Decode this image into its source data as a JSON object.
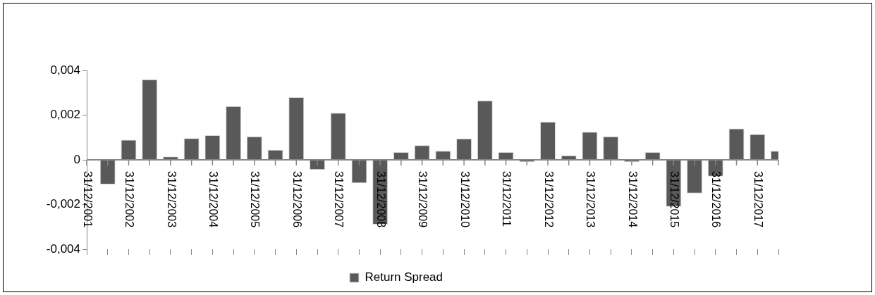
{
  "chart_data": {
    "type": "bar",
    "categories": [
      "31/12/2001",
      null,
      "31/12/2002",
      null,
      "31/12/2003",
      null,
      "31/12/2004",
      null,
      "31/12/2005",
      null,
      "31/12/2006",
      null,
      "31/12/2007",
      null,
      "31/12/2008",
      null,
      "31/12/2009",
      null,
      "31/12/2010",
      null,
      "31/12/2011",
      null,
      "31/12/2012",
      null,
      "31/12/2013",
      null,
      "31/12/2014",
      null,
      "31/12/2015",
      null,
      "31/12/2016",
      null,
      "31/12/2017",
      null
    ],
    "series": [
      {
        "name": "Return Spread",
        "color": "#595959",
        "values": [
          null,
          -0.0011,
          0.0009,
          0.0036,
          0.00015,
          0.00097,
          0.0011,
          0.0024,
          0.00105,
          0.00045,
          0.0028,
          -0.00045,
          0.0021,
          -0.00105,
          -0.0029,
          0.00035,
          0.00065,
          0.0004,
          0.00095,
          0.00265,
          0.00035,
          -0.0001,
          0.0017,
          0.0002,
          0.00125,
          0.00105,
          -0.0001,
          0.00035,
          -0.0021,
          -0.0015,
          -0.00075,
          0.0014,
          0.00115,
          0.0004
        ]
      }
    ],
    "ylim": [
      -0.004,
      0.004
    ],
    "yticks": [
      {
        "value": -0.004,
        "label": "-0,004"
      },
      {
        "value": -0.002,
        "label": "-0,002"
      },
      {
        "value": 0,
        "label": "0"
      },
      {
        "value": 0.002,
        "label": "0,002"
      },
      {
        "value": 0.004,
        "label": "0,004"
      }
    ],
    "grid": false,
    "legend": "bottom"
  }
}
